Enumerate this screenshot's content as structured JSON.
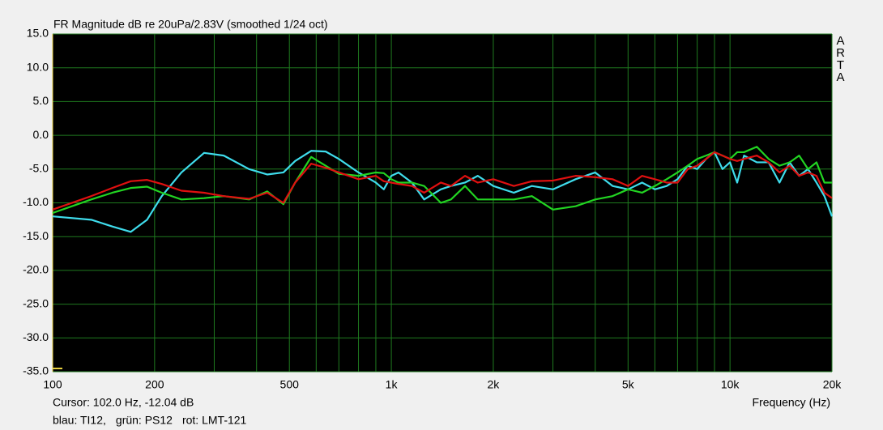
{
  "chart_data": {
    "type": "line",
    "title": "FR Magnitude dB re 20uPa/2.83V (smoothed 1/24 oct)",
    "side_label": "ARTA",
    "cursor_text": "Cursor: 102.0 Hz, -12.04 dB",
    "xlabel": "Frequency (Hz)",
    "log_x": true,
    "grid": true,
    "grid_color": "#1f7a1f",
    "background": "#000000",
    "xlim": [
      100,
      20000
    ],
    "ylim": [
      -35,
      15
    ],
    "xticks": [
      100,
      200,
      500,
      {
        "value": 1000,
        "label": "1k"
      },
      {
        "value": 2000,
        "label": "2k"
      },
      {
        "value": 5000,
        "label": "5k"
      },
      {
        "value": 10000,
        "label": "10k"
      },
      {
        "value": 20000,
        "label": "20k"
      }
    ],
    "xminor": [
      300,
      400,
      600,
      700,
      800,
      900,
      3000,
      4000,
      6000,
      7000,
      8000,
      9000
    ],
    "yticks": [
      {
        "value": 15,
        "label": "15.0"
      },
      {
        "value": 10,
        "label": "10.0"
      },
      {
        "value": 5,
        "label": "5.0"
      },
      {
        "value": 0,
        "label": "0.0"
      },
      {
        "value": -5,
        "label": "-5.0"
      },
      {
        "value": -10,
        "label": "-10.0"
      },
      {
        "value": -15,
        "label": "-15.0"
      },
      {
        "value": -20,
        "label": "-20.0"
      },
      {
        "value": -25,
        "label": "-25.0"
      },
      {
        "value": -30,
        "label": "-30.0"
      },
      {
        "value": -35,
        "label": "-35.0"
      }
    ],
    "x": [
      100,
      130,
      150,
      170,
      190,
      210,
      240,
      280,
      320,
      380,
      430,
      480,
      520,
      580,
      640,
      700,
      800,
      900,
      950,
      1000,
      1050,
      1150,
      1250,
      1400,
      1500,
      1650,
      1800,
      2000,
      2300,
      2600,
      3000,
      3500,
      4000,
      4500,
      5000,
      5500,
      6000,
      6500,
      7000,
      7500,
      8000,
      8500,
      9000,
      9500,
      10000,
      10500,
      11000,
      12000,
      13000,
      14000,
      15000,
      16000,
      17000,
      18000,
      19000,
      20000
    ],
    "series": [
      {
        "name": "blau: TI12,",
        "color": "#3fdcec",
        "values": [
          -12,
          -12.5,
          -13.5,
          -14.3,
          -12.5,
          -9,
          -5.5,
          -2.6,
          -3,
          -5,
          -5.8,
          -5.5,
          -3.8,
          -2.3,
          -2.4,
          -3.5,
          -5.5,
          -7,
          -8,
          -6,
          -5.5,
          -7,
          -9.5,
          -8,
          -7.5,
          -7,
          -6,
          -7.5,
          -8.5,
          -7.5,
          -8,
          -6.5,
          -5.5,
          -7.5,
          -8,
          -7,
          -8,
          -7.5,
          -6.5,
          -4.5,
          -5,
          -3.5,
          -2.5,
          -5,
          -4,
          -7,
          -3,
          -4,
          -4,
          -7,
          -4,
          -6,
          -5,
          -7,
          -9,
          -12
        ]
      },
      {
        "name": "grün: PS12",
        "color": "#22d422",
        "values": [
          -11.5,
          -9.5,
          -8.5,
          -7.8,
          -7.6,
          -8.5,
          -9.5,
          -9.3,
          -9,
          -9.5,
          -8.3,
          -10.2,
          -7,
          -3.2,
          -4.5,
          -5.7,
          -6,
          -5.5,
          -5.6,
          -6.5,
          -7,
          -7,
          -7.5,
          -10,
          -9.5,
          -7.5,
          -9.5,
          -9.5,
          -9.5,
          -9,
          -11,
          -10.5,
          -9.5,
          -9,
          -8,
          -8.5,
          -7.5,
          -6.5,
          -5.5,
          -4.5,
          -3.5,
          -3,
          -2.5,
          -3,
          -3.5,
          -2.5,
          -2.5,
          -1.7,
          -3.5,
          -4.5,
          -4,
          -3,
          -5,
          -4,
          -7,
          -7
        ]
      },
      {
        "name": "rot: LMT-121",
        "color": "#e01010",
        "values": [
          -11,
          -9,
          -7.8,
          -6.8,
          -6.6,
          -7.2,
          -8.2,
          -8.5,
          -9,
          -9.4,
          -8.5,
          -10,
          -7,
          -4.2,
          -4.8,
          -5.5,
          -6.5,
          -6,
          -6.8,
          -7,
          -7.2,
          -7.5,
          -8.5,
          -7,
          -7.5,
          -6,
          -7,
          -6.5,
          -7.5,
          -6.8,
          -6.7,
          -6,
          -6.2,
          -6.5,
          -7.5,
          -6,
          -6.5,
          -7,
          -7,
          -5,
          -4.5,
          -3.5,
          -2.5,
          -3,
          -3.5,
          -3.8,
          -3.5,
          -3,
          -4,
          -5.5,
          -4.5,
          -6,
          -5.5,
          -6,
          -8.5,
          -9.3
        ]
      }
    ]
  }
}
